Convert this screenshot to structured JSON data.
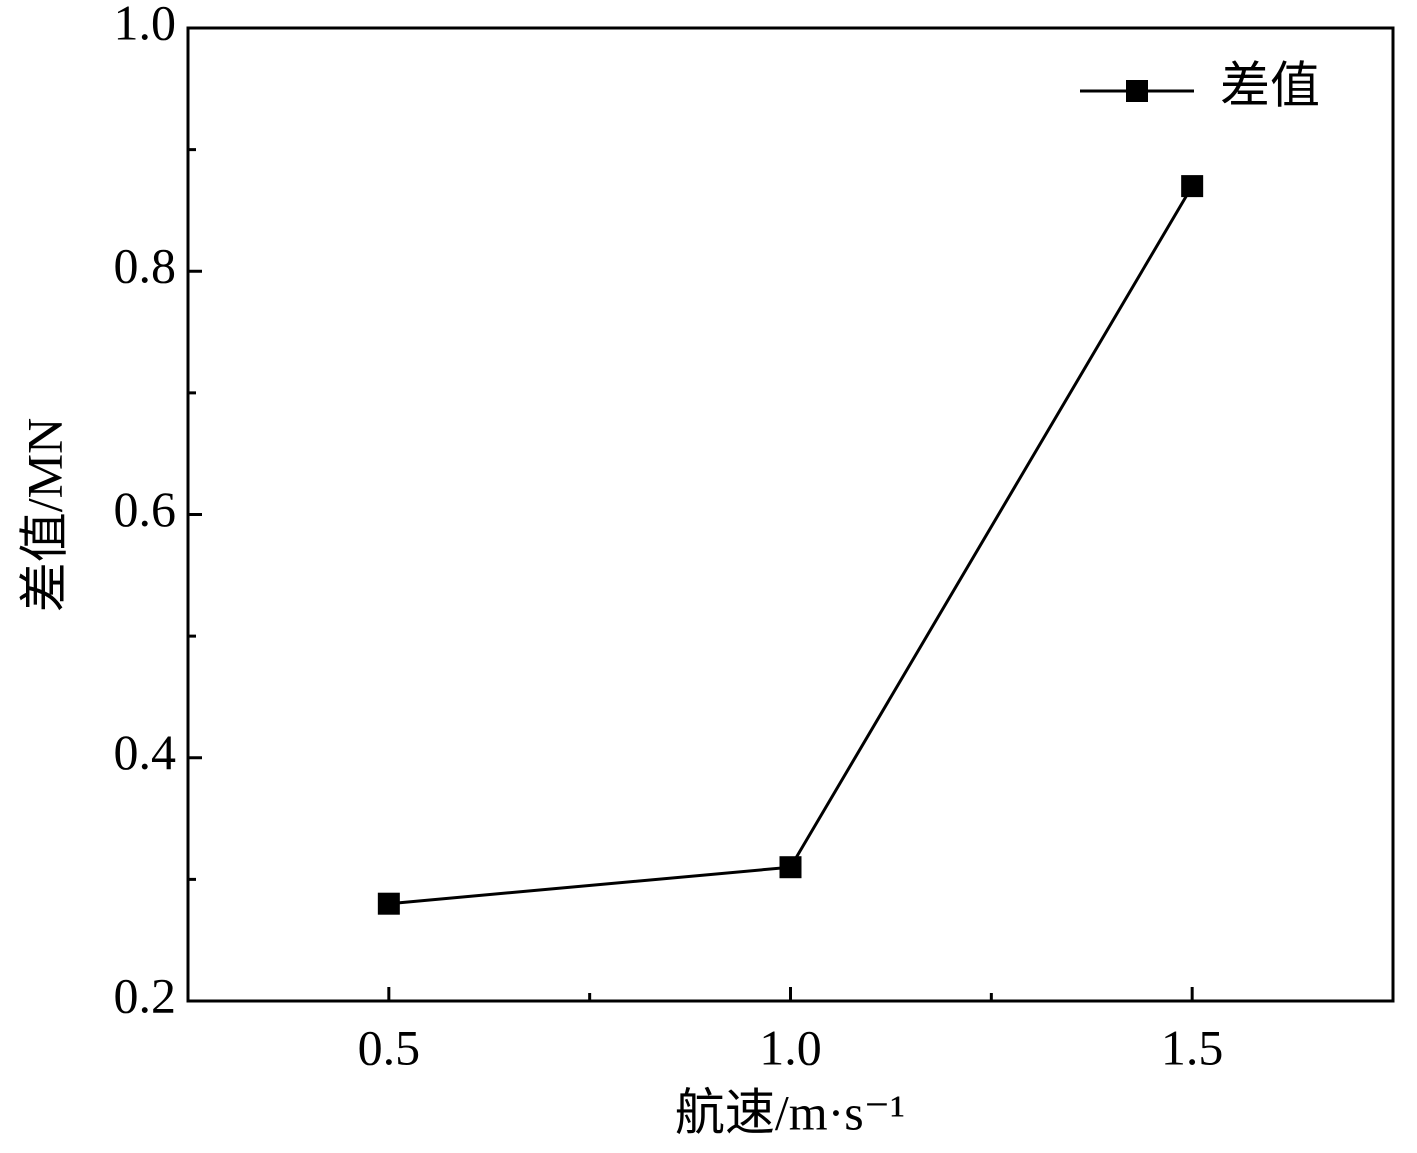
{
  "chart_data": {
    "type": "line",
    "xlabel": "航速/m·s⁻¹",
    "ylabel": "差值/MN",
    "x": [
      0.5,
      1.0,
      1.5
    ],
    "series": [
      {
        "name": "差值",
        "color": "#000000",
        "values": [
          0.28,
          0.31,
          0.87
        ]
      }
    ],
    "xlim": [
      0.25,
      1.75
    ],
    "ylim": [
      0.2,
      1.0
    ],
    "xticks": [
      0.5,
      {
        "value": 1.0,
        "label": "1.0"
      },
      1.5
    ],
    "yticks": [
      0.2,
      0.4,
      0.6,
      0.8,
      {
        "value": 1.0,
        "label": "1.0"
      }
    ],
    "xminorticks": [
      0.75,
      1.25
    ],
    "yminorticks": [
      0.3,
      0.5,
      0.7,
      0.9
    ],
    "legend": "upper right",
    "grid": false
  }
}
